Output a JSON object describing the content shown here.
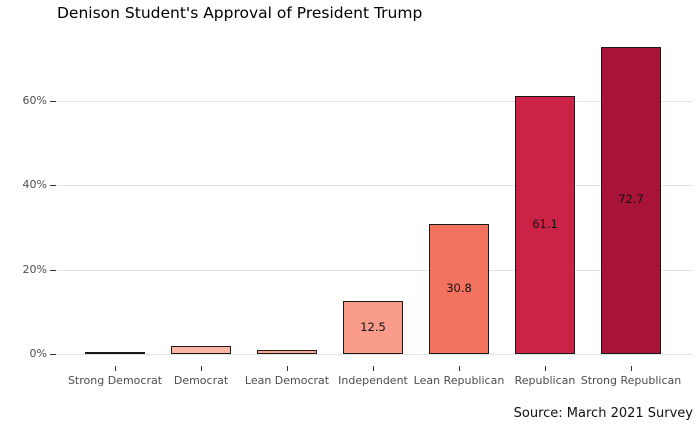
{
  "title": "Denison Student's Approval of President Trump",
  "caption": "Source: March 2021 Survey",
  "colors": {
    "background": "#FFFFFF",
    "grid": "#E3E3E3",
    "tick": "#333333",
    "axis_text": "#4D4D4D",
    "bar_outline": "#1A1A1A",
    "bar_label_text": "#111111"
  },
  "chart_data": {
    "type": "bar",
    "title": "Denison Student's Approval of President Trump",
    "categories": [
      "Strong Democrat",
      "Democrat",
      "Lean Democrat",
      "Independent",
      "Lean Republican",
      "Republican",
      "Strong Republican"
    ],
    "values": [
      0.0,
      1.8,
      0.9,
      12.5,
      30.8,
      61.1,
      72.7
    ],
    "bar_labels": [
      "",
      "",
      "",
      "12.5",
      "30.8",
      "61.1",
      "72.7"
    ],
    "bar_colors": [
      "#FCC5B4",
      "#FBB5A5",
      "#FAA593",
      "#FA9C8A",
      "#F4735F",
      "#CB2346",
      "#A81338"
    ],
    "y_tick_labels": [
      "0%",
      "20%",
      "40%",
      "60%"
    ],
    "y_tick_values": [
      0,
      20,
      40,
      60
    ],
    "ylim": [
      0,
      76
    ],
    "xlabel": "",
    "ylabel": "",
    "grid": "horizontal",
    "legend": "none",
    "caption": "Source: March 2021 Survey"
  }
}
